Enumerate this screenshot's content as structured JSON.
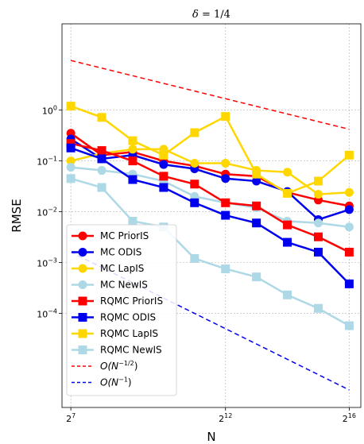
{
  "chart_data": {
    "type": "line",
    "title_prefix": "δ = ",
    "title_value": "1/4",
    "xlabel": "N",
    "ylabel": "RMSE",
    "x_scale": "log2",
    "y_scale": "log10",
    "xlim": [
      105,
      85000
    ],
    "ylim": [
      1.4e-06,
      50
    ],
    "grid": true,
    "legend_position": "lower-left",
    "x_ticks": [
      128,
      4096,
      65536
    ],
    "x_tick_base": "2",
    "x_tick_exponents": [
      "7",
      "12",
      "16"
    ],
    "y_ticks": [
      1,
      0.1,
      0.01,
      0.001,
      0.0001
    ],
    "y_tick_base": "10",
    "y_tick_exponents": [
      "0",
      "−1",
      "−2",
      "−3",
      "−4"
    ],
    "x": [
      128,
      256,
      512,
      1024,
      2048,
      4096,
      8192,
      16384,
      32768,
      65536
    ],
    "series": [
      {
        "name": "MC PriorIS",
        "color": "#ff0000",
        "marker": "circle",
        "linestyle": "solid",
        "values": [
          0.35,
          0.13,
          0.15,
          0.1,
          0.08,
          0.055,
          0.05,
          0.024,
          0.017,
          0.013
        ]
      },
      {
        "name": "MC ODIS",
        "color": "#0000ee",
        "marker": "circle",
        "linestyle": "solid",
        "values": [
          0.27,
          0.11,
          0.13,
          0.085,
          0.07,
          0.045,
          0.04,
          0.025,
          0.007,
          0.011
        ]
      },
      {
        "name": "MC LapIS",
        "color": "#ffd700",
        "marker": "circle",
        "linestyle": "solid",
        "values": [
          0.1,
          0.14,
          0.17,
          0.17,
          0.09,
          0.09,
          0.065,
          0.06,
          0.022,
          0.024
        ]
      },
      {
        "name": "MC NewIS",
        "color": "#add8e6",
        "marker": "circle",
        "linestyle": "solid",
        "values": [
          0.075,
          0.065,
          0.055,
          0.04,
          0.02,
          0.015,
          0.012,
          0.0065,
          0.006,
          0.005
        ]
      },
      {
        "name": "RQMC PriorIS",
        "color": "#ff0000",
        "marker": "square",
        "linestyle": "solid",
        "values": [
          0.22,
          0.16,
          0.1,
          0.05,
          0.035,
          0.015,
          0.013,
          0.0055,
          0.0032,
          0.0016
        ]
      },
      {
        "name": "RQMC ODIS",
        "color": "#0000ee",
        "marker": "square",
        "linestyle": "solid",
        "values": [
          0.18,
          0.11,
          0.043,
          0.03,
          0.015,
          0.0085,
          0.006,
          0.0025,
          0.0016,
          0.00038
        ]
      },
      {
        "name": "RQMC LapIS",
        "color": "#ffd700",
        "marker": "square",
        "linestyle": "solid",
        "values": [
          1.2,
          0.72,
          0.25,
          0.13,
          0.36,
          0.75,
          0.055,
          0.023,
          0.04,
          0.13
        ]
      },
      {
        "name": "RQMC NewIS",
        "color": "#add8e6",
        "marker": "square",
        "linestyle": "solid",
        "values": [
          0.045,
          0.03,
          0.0065,
          0.005,
          0.0012,
          0.00075,
          0.00052,
          0.00023,
          0.000125,
          5.7e-05
        ]
      },
      {
        "name_prefix": "O(N",
        "name_exponent": "−1/2",
        "name_suffix": ")",
        "color": "#ff0000",
        "marker": "none",
        "linestyle": "dashed",
        "endpoints_x": [
          128,
          65536
        ],
        "endpoints_y": [
          9.5,
          0.42
        ]
      },
      {
        "name_prefix": "O(N",
        "name_exponent": "−1",
        "name_suffix": ")",
        "color": "#0000ee",
        "marker": "none",
        "linestyle": "dashed",
        "endpoints_x": [
          128,
          65536
        ],
        "endpoints_y": [
          0.0016,
          3.1e-06
        ]
      }
    ]
  }
}
